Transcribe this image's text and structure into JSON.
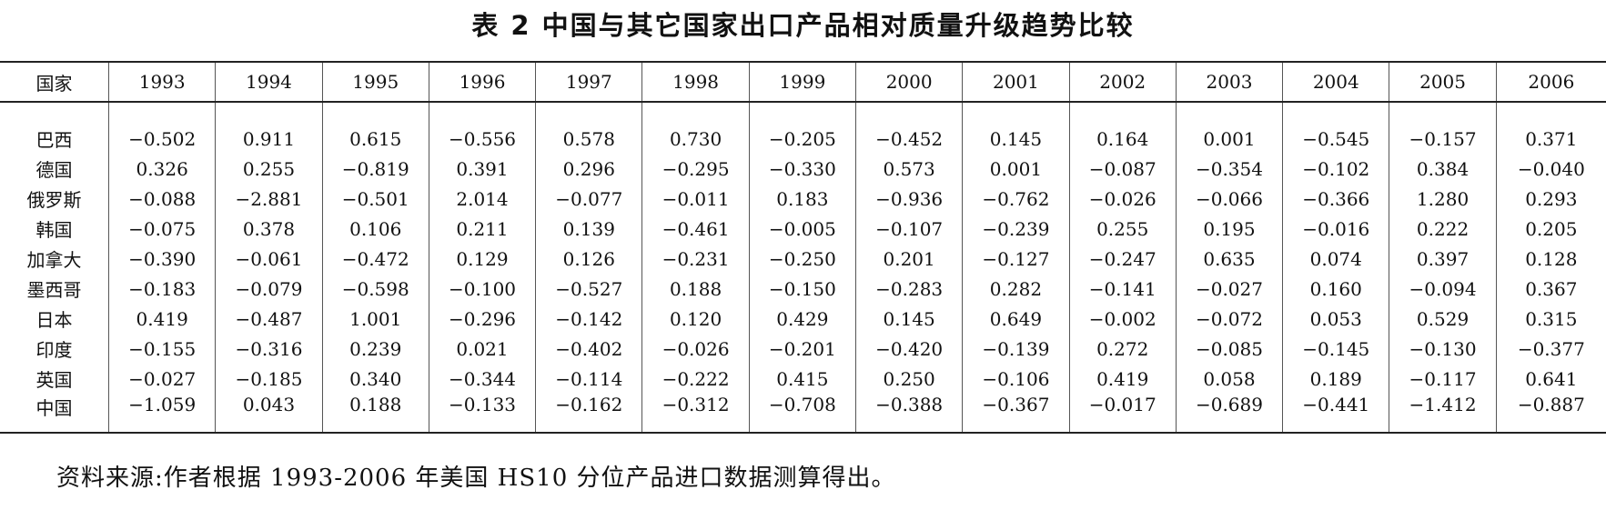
{
  "title": "表 2  中国与其它国家出口产品相对质量升级趋势比较",
  "table": {
    "headers": [
      "国家",
      "1993",
      "1994",
      "1995",
      "1996",
      "1997",
      "1998",
      "1999",
      "2000",
      "2001",
      "2002",
      "2003",
      "2004",
      "2005",
      "2006"
    ],
    "rows": [
      {
        "country": "巴西",
        "values": [
          "-0.502",
          "0.911",
          "0.615",
          "-0.556",
          "0.578",
          "0.730",
          "-0.205",
          "-0.452",
          "0.145",
          "0.164",
          "0.001",
          "-0.545",
          "-0.157",
          "0.371"
        ]
      },
      {
        "country": "德国",
        "values": [
          "0.326",
          "0.255",
          "-0.819",
          "0.391",
          "0.296",
          "-0.295",
          "-0.330",
          "0.573",
          "0.001",
          "-0.087",
          "-0.354",
          "-0.102",
          "0.384",
          "-0.040"
        ]
      },
      {
        "country": "俄罗斯",
        "values": [
          "-0.088",
          "-2.881",
          "-0.501",
          "2.014",
          "-0.077",
          "-0.011",
          "0.183",
          "-0.936",
          "-0.762",
          "-0.026",
          "-0.066",
          "-0.366",
          "1.280",
          "0.293"
        ]
      },
      {
        "country": "韩国",
        "values": [
          "-0.075",
          "0.378",
          "0.106",
          "0.211",
          "0.139",
          "-0.461",
          "-0.005",
          "-0.107",
          "-0.239",
          "0.255",
          "0.195",
          "-0.016",
          "0.222",
          "0.205"
        ]
      },
      {
        "country": "加拿大",
        "values": [
          "-0.390",
          "-0.061",
          "-0.472",
          "0.129",
          "0.126",
          "-0.231",
          "-0.250",
          "0.201",
          "-0.127",
          "-0.247",
          "0.635",
          "0.074",
          "0.397",
          "0.128"
        ]
      },
      {
        "country": "墨西哥",
        "values": [
          "-0.183",
          "-0.079",
          "-0.598",
          "-0.100",
          "-0.527",
          "0.188",
          "-0.150",
          "-0.283",
          "0.282",
          "-0.141",
          "-0.027",
          "0.160",
          "-0.094",
          "0.367"
        ]
      },
      {
        "country": "日本",
        "values": [
          "0.419",
          "-0.487",
          "1.001",
          "-0.296",
          "-0.142",
          "0.120",
          "0.429",
          "0.145",
          "0.649",
          "-0.002",
          "-0.072",
          "0.053",
          "0.529",
          "0.315"
        ]
      },
      {
        "country": "印度",
        "values": [
          "-0.155",
          "-0.316",
          "0.239",
          "0.021",
          "-0.402",
          "-0.026",
          "-0.201",
          "-0.420",
          "-0.139",
          "0.272",
          "-0.085",
          "-0.145",
          "-0.130",
          "-0.377"
        ]
      },
      {
        "country": "英国",
        "values": [
          "-0.027",
          "-0.185",
          "0.340",
          "-0.344",
          "-0.114",
          "-0.222",
          "0.415",
          "0.250",
          "-0.106",
          "0.419",
          "0.058",
          "0.189",
          "-0.117",
          "0.641"
        ]
      },
      {
        "country": "中国",
        "values": [
          "-1.059",
          "0.043",
          "0.188",
          "-0.133",
          "-0.162",
          "-0.312",
          "-0.708",
          "-0.388",
          "-0.367",
          "-0.017",
          "-0.689",
          "-0.441",
          "-1.412",
          "-0.887"
        ]
      }
    ]
  },
  "source_note": "资料来源:作者根据 1993-2006 年美国 HS10 分位产品进口数据测算得出。"
}
